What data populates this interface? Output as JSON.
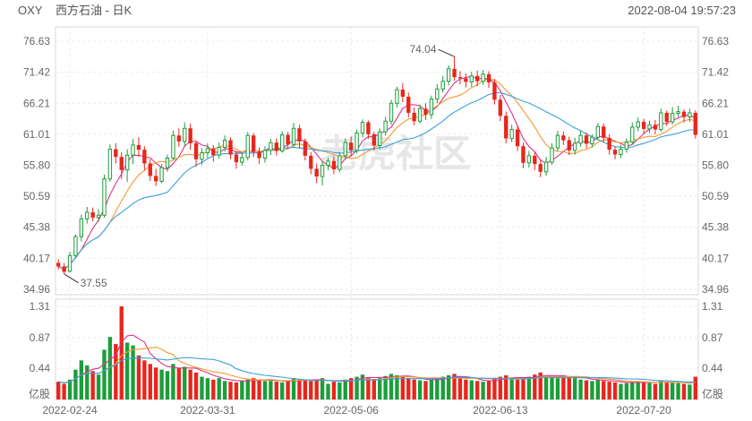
{
  "header": {
    "symbol": "OXY",
    "title": "西方石油 - 日K",
    "datetime": "2022-08-04 19:57:23"
  },
  "watermark": "老虎社区",
  "chart_data": {
    "type": "candlestick",
    "price_axis": {
      "ticks": [
        76.63,
        71.42,
        66.21,
        61.01,
        55.8,
        50.59,
        45.38,
        40.17,
        34.96
      ]
    },
    "volume_axis": {
      "ticks": [
        1.31,
        0.87,
        0.44
      ],
      "unit": "亿股"
    },
    "x_ticks": [
      "2022-02-24",
      "2022-03-31",
      "2022-05-06",
      "2022-06-13",
      "2022-07-20"
    ],
    "annotations": {
      "high_label": "74.04",
      "low_label": "37.55"
    },
    "colors": {
      "up": "#1a9e3a",
      "down": "#e8261c",
      "ma5": "#e0308a",
      "ma10": "#f39a2b",
      "ma20": "#3aa0dc"
    },
    "candles": [
      [
        39.4,
        38.8,
        40.0,
        38.3,
        0.25
      ],
      [
        38.8,
        37.9,
        39.4,
        37.55,
        0.22
      ],
      [
        38.0,
        40.6,
        41.3,
        37.8,
        0.28
      ],
      [
        40.6,
        43.8,
        44.2,
        40.2,
        0.42
      ],
      [
        43.8,
        46.8,
        47.5,
        43.0,
        0.55
      ],
      [
        46.8,
        47.9,
        48.8,
        46.0,
        0.48
      ],
      [
        47.9,
        47.0,
        48.7,
        46.4,
        0.4
      ],
      [
        47.0,
        47.4,
        48.4,
        46.3,
        0.35
      ],
      [
        47.4,
        53.5,
        54.2,
        47.0,
        0.7
      ],
      [
        53.5,
        58.5,
        59.3,
        53.0,
        0.88
      ],
      [
        58.5,
        57.2,
        59.5,
        56.1,
        0.78
      ],
      [
        57.2,
        55.0,
        58.0,
        53.5,
        1.31
      ],
      [
        55.0,
        57.5,
        58.5,
        53.0,
        0.8
      ],
      [
        57.5,
        59.2,
        60.2,
        56.0,
        0.76
      ],
      [
        59.2,
        58.4,
        60.5,
        57.2,
        0.62
      ],
      [
        58.4,
        56.1,
        59.0,
        54.9,
        0.55
      ],
      [
        56.1,
        54.0,
        56.8,
        53.2,
        0.5
      ],
      [
        54.0,
        53.1,
        55.2,
        52.3,
        0.45
      ],
      [
        53.1,
        55.4,
        56.0,
        52.8,
        0.42
      ],
      [
        55.4,
        57.0,
        57.6,
        54.7,
        0.4
      ],
      [
        57.0,
        60.8,
        61.6,
        56.6,
        0.5
      ],
      [
        60.8,
        59.8,
        62.0,
        58.9,
        0.44
      ],
      [
        59.8,
        62.0,
        63.0,
        59.0,
        0.46
      ],
      [
        62.0,
        59.5,
        62.8,
        58.4,
        0.42
      ],
      [
        59.5,
        56.8,
        60.0,
        55.6,
        0.38
      ],
      [
        56.8,
        57.9,
        58.7,
        55.9,
        0.32
      ],
      [
        57.9,
        58.6,
        59.5,
        57.0,
        0.3
      ],
      [
        58.6,
        57.5,
        59.2,
        56.4,
        0.28
      ],
      [
        57.5,
        58.8,
        59.6,
        56.9,
        0.3
      ],
      [
        58.8,
        60.0,
        60.8,
        58.1,
        0.26
      ],
      [
        60.0,
        57.6,
        60.5,
        56.8,
        0.25
      ],
      [
        57.6,
        56.3,
        58.2,
        55.2,
        0.24
      ],
      [
        56.3,
        57.1,
        57.9,
        55.7,
        0.26
      ],
      [
        57.1,
        60.8,
        61.4,
        56.6,
        0.28
      ],
      [
        60.8,
        58.1,
        61.2,
        57.2,
        0.3
      ],
      [
        58.1,
        57.0,
        58.8,
        56.0,
        0.27
      ],
      [
        57.0,
        58.3,
        59.0,
        56.2,
        0.26
      ],
      [
        58.3,
        59.6,
        60.2,
        57.5,
        0.28
      ],
      [
        59.6,
        58.2,
        60.3,
        57.4,
        0.25
      ],
      [
        58.2,
        60.9,
        61.5,
        57.9,
        0.24
      ],
      [
        60.9,
        59.3,
        61.4,
        58.5,
        0.26
      ],
      [
        59.3,
        62.0,
        62.9,
        58.9,
        0.3
      ],
      [
        62.0,
        59.8,
        62.6,
        58.6,
        0.28
      ],
      [
        59.8,
        57.4,
        60.3,
        56.6,
        0.27
      ],
      [
        57.4,
        55.2,
        58.0,
        54.3,
        0.26
      ],
      [
        55.2,
        53.9,
        56.1,
        52.8,
        0.28
      ],
      [
        53.9,
        55.8,
        56.4,
        52.4,
        0.3
      ],
      [
        55.8,
        56.5,
        57.0,
        55.0,
        0.22
      ],
      [
        56.5,
        55.1,
        57.3,
        54.3,
        0.25
      ],
      [
        55.1,
        57.4,
        58.0,
        54.6,
        0.24
      ],
      [
        57.4,
        59.6,
        60.3,
        56.9,
        0.28
      ],
      [
        59.6,
        58.3,
        60.6,
        57.4,
        0.3
      ],
      [
        58.3,
        61.2,
        61.8,
        57.8,
        0.32
      ],
      [
        61.2,
        63.0,
        63.5,
        60.5,
        0.35
      ],
      [
        63.0,
        61.0,
        63.3,
        60.2,
        0.3
      ],
      [
        61.0,
        59.1,
        61.4,
        58.3,
        0.28
      ],
      [
        59.1,
        61.4,
        62.0,
        58.5,
        0.3
      ],
      [
        61.4,
        63.2,
        63.9,
        60.8,
        0.33
      ],
      [
        63.2,
        66.2,
        66.8,
        62.6,
        0.36
      ],
      [
        66.2,
        68.5,
        69.0,
        65.5,
        0.34
      ],
      [
        68.5,
        67.3,
        69.6,
        66.4,
        0.32
      ],
      [
        67.3,
        64.6,
        68.0,
        63.8,
        0.3
      ],
      [
        64.6,
        63.2,
        65.5,
        62.5,
        0.28
      ],
      [
        63.2,
        65.3,
        66.0,
        62.8,
        0.27
      ],
      [
        65.3,
        64.3,
        66.2,
        63.4,
        0.26
      ],
      [
        64.3,
        66.9,
        67.5,
        63.6,
        0.28
      ],
      [
        66.9,
        68.6,
        69.4,
        66.2,
        0.3
      ],
      [
        68.6,
        69.9,
        70.8,
        68.0,
        0.32
      ],
      [
        69.9,
        72.0,
        72.6,
        69.2,
        0.34
      ],
      [
        72.0,
        70.6,
        74.04,
        70.0,
        0.36
      ],
      [
        70.6,
        70.4,
        71.6,
        69.4,
        0.3
      ],
      [
        70.4,
        69.8,
        71.2,
        68.9,
        0.28
      ],
      [
        69.8,
        70.8,
        71.5,
        69.0,
        0.27
      ],
      [
        70.8,
        69.9,
        71.7,
        69.1,
        0.26
      ],
      [
        69.9,
        71.1,
        71.8,
        69.3,
        0.25
      ],
      [
        71.1,
        69.7,
        71.6,
        68.8,
        0.26
      ],
      [
        69.7,
        66.8,
        70.3,
        66.0,
        0.3
      ],
      [
        66.8,
        64.1,
        67.6,
        63.2,
        0.32
      ],
      [
        64.1,
        60.3,
        64.8,
        59.5,
        0.34
      ],
      [
        60.3,
        61.8,
        62.6,
        59.7,
        0.3
      ],
      [
        61.8,
        59.0,
        62.5,
        58.2,
        0.28
      ],
      [
        59.0,
        56.2,
        59.6,
        55.3,
        0.3
      ],
      [
        56.2,
        57.4,
        58.2,
        55.4,
        0.32
      ],
      [
        57.4,
        56.0,
        58.0,
        55.0,
        0.35
      ],
      [
        56.0,
        54.7,
        56.8,
        53.8,
        0.38
      ],
      [
        54.7,
        56.3,
        57.2,
        54.0,
        0.33
      ],
      [
        56.3,
        58.7,
        59.5,
        55.9,
        0.31
      ],
      [
        58.7,
        60.8,
        61.6,
        58.1,
        0.3
      ],
      [
        60.8,
        60.0,
        61.5,
        59.2,
        0.34
      ],
      [
        60.0,
        58.3,
        60.6,
        57.5,
        0.32
      ],
      [
        58.3,
        59.5,
        60.4,
        57.6,
        0.3
      ],
      [
        59.5,
        60.8,
        61.6,
        58.9,
        0.28
      ],
      [
        60.8,
        59.4,
        61.3,
        58.6,
        0.27
      ],
      [
        59.4,
        60.5,
        61.0,
        58.8,
        0.26
      ],
      [
        60.5,
        62.3,
        62.9,
        60.0,
        0.28
      ],
      [
        62.3,
        60.4,
        62.8,
        59.7,
        0.26
      ],
      [
        60.4,
        58.4,
        61.0,
        57.6,
        0.25
      ],
      [
        58.4,
        57.6,
        59.0,
        56.8,
        0.24
      ],
      [
        57.6,
        58.5,
        59.2,
        57.0,
        0.22
      ],
      [
        58.5,
        59.7,
        60.3,
        57.9,
        0.23
      ],
      [
        59.7,
        62.2,
        63.0,
        59.3,
        0.25
      ],
      [
        62.2,
        63.1,
        63.8,
        61.5,
        0.26
      ],
      [
        63.1,
        61.9,
        63.6,
        61.1,
        0.24
      ],
      [
        61.9,
        62.6,
        63.3,
        61.2,
        0.23
      ],
      [
        62.6,
        61.8,
        63.4,
        61.0,
        0.22
      ],
      [
        61.8,
        64.6,
        65.3,
        61.4,
        0.26
      ],
      [
        64.6,
        63.1,
        65.0,
        62.4,
        0.25
      ],
      [
        63.1,
        64.5,
        65.6,
        62.6,
        0.24
      ],
      [
        64.5,
        64.8,
        65.8,
        63.9,
        0.23
      ],
      [
        64.8,
        63.9,
        65.2,
        63.0,
        0.22
      ],
      [
        63.9,
        64.6,
        65.3,
        63.1,
        0.21
      ],
      [
        64.6,
        60.9,
        65.0,
        60.3,
        0.32
      ]
    ]
  }
}
